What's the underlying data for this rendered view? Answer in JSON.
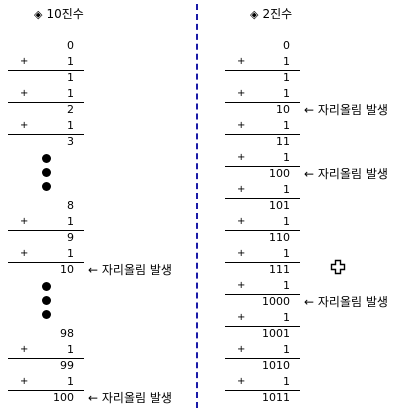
{
  "left_title": "10진수",
  "right_title": "2진수",
  "title_marker": "◈",
  "plus": "+",
  "carry_note": "← 자리올림 발생",
  "decimal": {
    "rows": [
      {
        "kind": "val",
        "text": "0"
      },
      {
        "kind": "op",
        "text": "1"
      },
      {
        "kind": "val",
        "text": "1"
      },
      {
        "kind": "op",
        "text": "1"
      },
      {
        "kind": "val",
        "text": "2"
      },
      {
        "kind": "op",
        "text": "1"
      },
      {
        "kind": "val",
        "text": "3"
      },
      {
        "kind": "gap"
      },
      {
        "kind": "val",
        "text": "8"
      },
      {
        "kind": "op",
        "text": "1"
      },
      {
        "kind": "val",
        "text": "9"
      },
      {
        "kind": "op",
        "text": "1"
      },
      {
        "kind": "val",
        "text": "10",
        "carry": true
      },
      {
        "kind": "gap"
      },
      {
        "kind": "val",
        "text": "98"
      },
      {
        "kind": "op",
        "text": "1"
      },
      {
        "kind": "val",
        "text": "99"
      },
      {
        "kind": "op",
        "text": "1"
      },
      {
        "kind": "val",
        "text": "100",
        "carry": true
      }
    ]
  },
  "binary": {
    "rows": [
      {
        "kind": "val",
        "text": "0"
      },
      {
        "kind": "op",
        "text": "1"
      },
      {
        "kind": "val",
        "text": "1"
      },
      {
        "kind": "op",
        "text": "1"
      },
      {
        "kind": "val",
        "text": "10",
        "carry": true
      },
      {
        "kind": "op",
        "text": "1"
      },
      {
        "kind": "val",
        "text": "11"
      },
      {
        "kind": "op",
        "text": "1"
      },
      {
        "kind": "val",
        "text": "100",
        "carry": true
      },
      {
        "kind": "op",
        "text": "1"
      },
      {
        "kind": "val",
        "text": "101"
      },
      {
        "kind": "op",
        "text": "1"
      },
      {
        "kind": "val",
        "text": "110"
      },
      {
        "kind": "op",
        "text": "1"
      },
      {
        "kind": "val",
        "text": "111"
      },
      {
        "kind": "op",
        "text": "1"
      },
      {
        "kind": "val",
        "text": "1000",
        "carry": true
      },
      {
        "kind": "op",
        "text": "1"
      },
      {
        "kind": "val",
        "text": "1001"
      },
      {
        "kind": "op",
        "text": "1"
      },
      {
        "kind": "val",
        "text": "1010"
      },
      {
        "kind": "op",
        "text": "1"
      },
      {
        "kind": "val",
        "text": "1011"
      }
    ]
  },
  "icons": {
    "cursor": "move-cursor-icon"
  }
}
